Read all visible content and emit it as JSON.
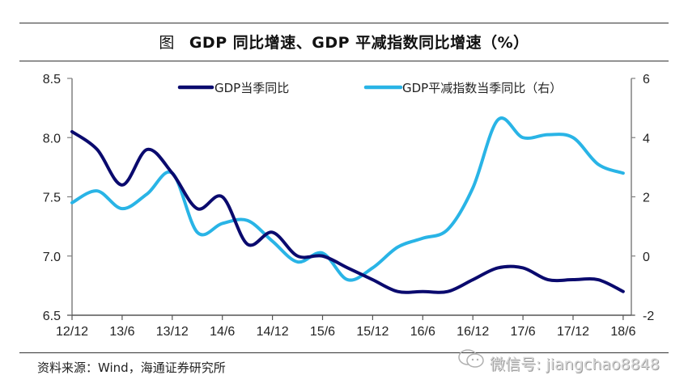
{
  "header": {
    "figure_label": "图",
    "title": "GDP 同比增速、GDP 平减指数同比增速（%）"
  },
  "footer": {
    "source": "资料来源：Wind，海通证券研究所",
    "watermark_icon": "wechat-icon",
    "watermark_text": "微信号: jiangchao8848"
  },
  "colors": {
    "gdp": "#0a0a6e",
    "deflator": "#29b4e6",
    "axis": "#808080"
  },
  "chart_data": {
    "type": "line",
    "title": "GDP 同比增速、GDP 平减指数同比增速（%）",
    "xlabel": "",
    "ylabel": "",
    "x": [
      "12/12",
      "13/3",
      "13/6",
      "13/9",
      "13/12",
      "14/3",
      "14/6",
      "14/9",
      "14/12",
      "15/3",
      "15/6",
      "15/9",
      "15/12",
      "16/3",
      "16/6",
      "16/9",
      "16/12",
      "17/3",
      "17/6",
      "17/9",
      "17/12",
      "18/3",
      "18/6"
    ],
    "x_tick_labels": [
      "12/12",
      "13/6",
      "13/12",
      "14/6",
      "14/12",
      "15/6",
      "15/12",
      "16/6",
      "16/12",
      "17/6",
      "17/12",
      "18/6"
    ],
    "series": [
      {
        "name": "GDP当季同比",
        "axis": "left",
        "values": [
          8.05,
          7.9,
          7.6,
          7.9,
          7.7,
          7.4,
          7.5,
          7.1,
          7.2,
          7.0,
          7.0,
          6.9,
          6.8,
          6.7,
          6.7,
          6.7,
          6.8,
          6.9,
          6.9,
          6.8,
          6.8,
          6.8,
          6.7
        ]
      },
      {
        "name": "GDP平减指数当季同比（右）",
        "axis": "right",
        "values": [
          1.8,
          2.2,
          1.6,
          2.1,
          2.8,
          0.8,
          1.1,
          1.2,
          0.5,
          -0.2,
          0.1,
          -0.8,
          -0.4,
          0.3,
          0.6,
          0.9,
          2.3,
          4.6,
          4.0,
          4.1,
          4.0,
          3.1,
          2.8
        ]
      }
    ],
    "y_left": {
      "ylim": [
        6.5,
        8.5
      ],
      "ticks": [
        "6.5",
        "7.0",
        "7.5",
        "8.0",
        "8.5"
      ]
    },
    "y_right": {
      "ylim": [
        -2,
        6
      ],
      "ticks": [
        "-2",
        "0",
        "2",
        "4",
        "6"
      ]
    },
    "grid": false,
    "legend_position": "top"
  }
}
